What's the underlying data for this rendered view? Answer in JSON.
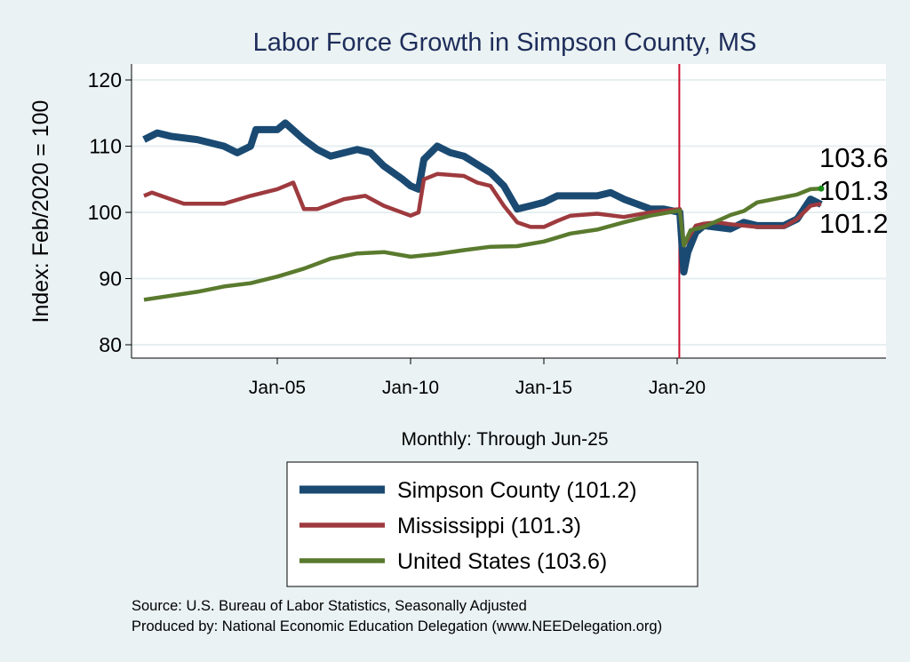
{
  "chart_data": {
    "type": "line",
    "title": "Labor Force Growth in Simpson  County, MS",
    "xlabel": "Monthly: Through Jun-25",
    "ylabel": "Index: Feb/2020 = 100",
    "ylim": [
      80,
      120
    ],
    "yticks": [
      80,
      90,
      100,
      110,
      120
    ],
    "xlim": [
      1999.5,
      2027.9
    ],
    "xticks": [
      {
        "x": 2005,
        "label": "Jan-05"
      },
      {
        "x": 2010,
        "label": "Jan-10"
      },
      {
        "x": 2015,
        "label": "Jan-15"
      },
      {
        "x": 2020,
        "label": "Jan-20"
      }
    ],
    "vline": {
      "x": 2020.08,
      "color": "#c8102e"
    },
    "grid": true,
    "legend_placement": "bottom",
    "series": [
      {
        "name": "Simpson  County (101.2)",
        "end_label": "101.2",
        "color": "#1a4a72",
        "points": [
          [
            2000,
            111
          ],
          [
            2000.5,
            112
          ],
          [
            2001,
            111.5
          ],
          [
            2002,
            111
          ],
          [
            2003,
            110
          ],
          [
            2003.5,
            109
          ],
          [
            2004,
            110
          ],
          [
            2004.2,
            112.5
          ],
          [
            2005,
            112.5
          ],
          [
            2005.3,
            113.5
          ],
          [
            2006,
            111
          ],
          [
            2006.5,
            109.5
          ],
          [
            2007,
            108.5
          ],
          [
            2008,
            109.5
          ],
          [
            2008.5,
            109
          ],
          [
            2009,
            107
          ],
          [
            2009.7,
            105
          ],
          [
            2010,
            104
          ],
          [
            2010.3,
            103.5
          ],
          [
            2010.5,
            108
          ],
          [
            2011,
            110
          ],
          [
            2011.5,
            109
          ],
          [
            2012,
            108.5
          ],
          [
            2013,
            106
          ],
          [
            2013.5,
            104
          ],
          [
            2014,
            100.5
          ],
          [
            2014.5,
            101
          ],
          [
            2015,
            101.5
          ],
          [
            2015.5,
            102.5
          ],
          [
            2016,
            102.5
          ],
          [
            2017,
            102.5
          ],
          [
            2017.5,
            103
          ],
          [
            2018,
            102
          ],
          [
            2019,
            100.5
          ],
          [
            2019.5,
            100.5
          ],
          [
            2020.1,
            100
          ],
          [
            2020.25,
            91
          ],
          [
            2020.4,
            94
          ],
          [
            2020.7,
            97
          ],
          [
            2021,
            98
          ],
          [
            2022,
            97.5
          ],
          [
            2022.5,
            98.5
          ],
          [
            2023,
            98
          ],
          [
            2024,
            98
          ],
          [
            2024.5,
            99
          ],
          [
            2025,
            102
          ],
          [
            2025.4,
            101.2
          ]
        ]
      },
      {
        "name": "Mississippi (101.3)",
        "end_label": "101.3",
        "color": "#9e3a3e",
        "points": [
          [
            2000,
            102.5
          ],
          [
            2000.3,
            103
          ],
          [
            2001,
            102
          ],
          [
            2001.5,
            101.3
          ],
          [
            2003,
            101.3
          ],
          [
            2004,
            102.5
          ],
          [
            2005,
            103.5
          ],
          [
            2005.6,
            104.5
          ],
          [
            2006,
            100.5
          ],
          [
            2006.5,
            100.5
          ],
          [
            2007.5,
            102
          ],
          [
            2008.3,
            102.5
          ],
          [
            2009,
            101
          ],
          [
            2010,
            99.5
          ],
          [
            2010.3,
            100
          ],
          [
            2010.5,
            105
          ],
          [
            2011,
            105.8
          ],
          [
            2012,
            105.5
          ],
          [
            2012.5,
            104.5
          ],
          [
            2013,
            104
          ],
          [
            2013.5,
            101
          ],
          [
            2014,
            98.5
          ],
          [
            2014.5,
            97.8
          ],
          [
            2015,
            97.8
          ],
          [
            2015.5,
            98.7
          ],
          [
            2016,
            99.5
          ],
          [
            2017,
            99.8
          ],
          [
            2018,
            99.3
          ],
          [
            2019,
            100
          ],
          [
            2020.1,
            100.5
          ],
          [
            2020.25,
            95
          ],
          [
            2020.7,
            98
          ],
          [
            2021,
            98.3
          ],
          [
            2021.5,
            98.5
          ],
          [
            2022,
            98.2
          ],
          [
            2023,
            97.8
          ],
          [
            2024,
            97.8
          ],
          [
            2024.5,
            99
          ],
          [
            2025,
            101
          ],
          [
            2025.4,
            101.3
          ]
        ]
      },
      {
        "name": "United States (103.6)",
        "end_label": "103.6",
        "color": "#5a7a2e",
        "points": [
          [
            2000,
            86.8
          ],
          [
            2002,
            88
          ],
          [
            2003,
            88.8
          ],
          [
            2004,
            89.3
          ],
          [
            2005,
            90.3
          ],
          [
            2006,
            91.5
          ],
          [
            2007,
            93
          ],
          [
            2008,
            93.8
          ],
          [
            2009,
            94
          ],
          [
            2010,
            93.3
          ],
          [
            2011,
            93.7
          ],
          [
            2012,
            94.3
          ],
          [
            2013,
            94.8
          ],
          [
            2014,
            94.9
          ],
          [
            2015,
            95.6
          ],
          [
            2016,
            96.8
          ],
          [
            2017,
            97.4
          ],
          [
            2018,
            98.5
          ],
          [
            2019,
            99.5
          ],
          [
            2020.1,
            100.3
          ],
          [
            2020.25,
            95
          ],
          [
            2020.5,
            97.3
          ],
          [
            2021,
            97.8
          ],
          [
            2022,
            99.6
          ],
          [
            2022.5,
            100.2
          ],
          [
            2023,
            101.5
          ],
          [
            2024,
            102.3
          ],
          [
            2024.5,
            102.7
          ],
          [
            2025,
            103.5
          ],
          [
            2025.4,
            103.6
          ]
        ]
      }
    ],
    "notes": [
      "Source: U.S. Bureau of Labor Statistics, Seasonally Adjusted",
      "Produced by: National Economic Education Delegation (www.NEEDelegation.org)"
    ]
  }
}
